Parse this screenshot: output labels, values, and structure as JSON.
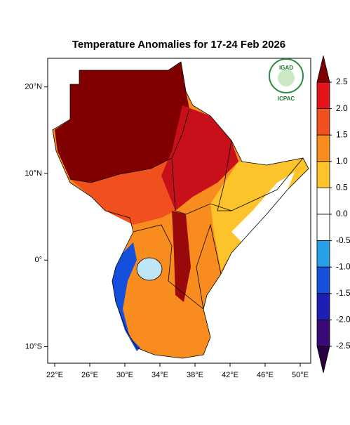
{
  "map": {
    "title": "Temperature Anomalies for 17-24 Feb 2026",
    "xlim": [
      21.2,
      51.2
    ],
    "ylim": [
      -11.9,
      23.3
    ],
    "xticks": [
      {
        "value": 22,
        "label": "22°E"
      },
      {
        "value": 26,
        "label": "26°E"
      },
      {
        "value": 30,
        "label": "30°E"
      },
      {
        "value": 34,
        "label": "34°E"
      },
      {
        "value": 38,
        "label": "38°E"
      },
      {
        "value": 42,
        "label": "42°E"
      },
      {
        "value": 46,
        "label": "46°E"
      },
      {
        "value": 50,
        "label": "50°E"
      }
    ],
    "yticks": [
      {
        "value": 20,
        "label": "20°N"
      },
      {
        "value": 10,
        "label": "10°N"
      },
      {
        "value": 0,
        "label": "0°"
      },
      {
        "value": -10,
        "label": "10°S"
      }
    ],
    "colorbar": {
      "levels": [
        {
          "value": 2.5,
          "label": "2.5"
        },
        {
          "value": 2,
          "label": "2.0"
        },
        {
          "value": 1.5,
          "label": "1.5"
        },
        {
          "value": 1,
          "label": "1.0"
        },
        {
          "value": 0.5,
          "label": "0.5"
        },
        {
          "value": 0,
          "label": "0.0"
        },
        {
          "value": -0.5,
          "label": "-0.5"
        },
        {
          "value": -1,
          "label": "-1.0"
        },
        {
          "value": -1.5,
          "label": "-1.5"
        },
        {
          "value": -2,
          "label": "-2.0"
        },
        {
          "value": -2.5,
          "label": "-2.5"
        }
      ],
      "colors": [
        "#800000",
        "#e3141c",
        "#f0501e",
        "#f88c1e",
        "#fcc42a",
        "#ffffff",
        "#ffffff",
        "#28a0e8",
        "#1450dc",
        "#1e1eb4",
        "#3c0a78",
        "#2a0040"
      ]
    },
    "logo": {
      "top": "IGAD",
      "bottom": "ICPAC"
    }
  }
}
